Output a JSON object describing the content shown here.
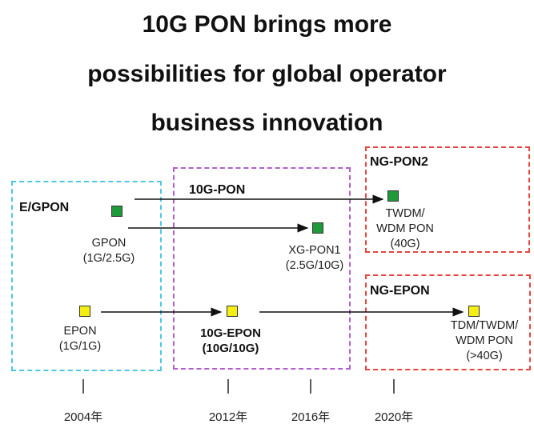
{
  "title": {
    "line1": "10G PON brings more",
    "line2": "possibilities for global operator",
    "line3": "business innovation"
  },
  "groups": {
    "egpon": "E/GPON",
    "tenGpon": "10G-PON",
    "ngpon2": "NG-PON2",
    "ngepon": "NG-EPON"
  },
  "nodes": {
    "gpon": {
      "name": "GPON",
      "rate": "(1G/2.5G)"
    },
    "epon": {
      "name": "EPON",
      "rate": "(1G/1G)"
    },
    "xgpon1": {
      "name": "XG-PON1",
      "rate": "(2.5G/10G)"
    },
    "tenGepon": {
      "name": "10G-EPON",
      "rate": "(10G/10G)"
    },
    "twdm": {
      "name1": "TWDM/",
      "name2": "WDM PON",
      "rate": "(40G)"
    },
    "tdm": {
      "name1": "TDM/TWDM/",
      "name2": "WDM PON",
      "rate": "(>40G)"
    }
  },
  "colors": {
    "egpon_border": "#4fc6e6",
    "tenGpon_border": "#b45fcf",
    "ng_border": "#e8463f",
    "node_green": "#1f9a3a",
    "node_yellow": "#f5ee12"
  },
  "timeline": [
    "2004年",
    "2012年",
    "2016年",
    "2020年"
  ]
}
